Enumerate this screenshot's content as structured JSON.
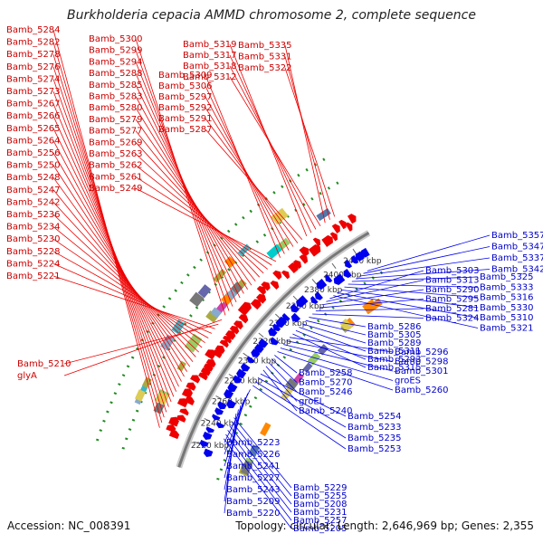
{
  "title": "Burkholderia cepacia AMMD chromosome 2, complete sequence",
  "footer": {
    "accession": "Accession: NC_008391",
    "summary": "Topology: circular; Length: 2,646,969 bp; Genes: 2,355"
  },
  "colors": {
    "forward_gene": "#ee0000",
    "reverse_gene": "#0000ee",
    "forward_label": "#cc0000",
    "reverse_label": "#0000cc",
    "backbone": "#777777",
    "dots": "#228b22"
  },
  "scale_ticks": [
    "2220 kbp",
    "2240 kbp",
    "2260 kbp",
    "2280 kbp",
    "2300 kbp",
    "2320 kbp",
    "2340 kbp",
    "2360 kbp",
    "2380 kbp",
    "2400 kbp",
    "2420 kbp"
  ],
  "forward_labels": [
    "Bamb_5284",
    "Bamb_5282",
    "Bamb_5278",
    "Bamb_5276",
    "Bamb_5274",
    "Bamb_5273",
    "Bamb_5267",
    "Bamb_5266",
    "Bamb_5265",
    "Bamb_5264",
    "Bamb_5256",
    "Bamb_5250",
    "Bamb_5248",
    "Bamb_5247",
    "Bamb_5242",
    "Bamb_5236",
    "Bamb_5234",
    "Bamb_5230",
    "Bamb_5228",
    "Bamb_5224",
    "Bamb_5221",
    "Bamb_5210",
    "glyA",
    "Bamb_5300",
    "Bamb_5299",
    "Bamb_5294",
    "Bamb_5288",
    "Bamb_5285",
    "Bamb_5283",
    "Bamb_5280",
    "Bamb_5279",
    "Bamb_5277",
    "Bamb_5269",
    "Bamb_5263",
    "Bamb_5262",
    "Bamb_5261",
    "Bamb_5249",
    "Bamb_5309",
    "Bamb_5306",
    "Bamb_5297",
    "Bamb_5292",
    "Bamb_5291",
    "Bamb_5287",
    "Bamb_5319",
    "Bamb_5317",
    "Bamb_5318",
    "Bamb_5312",
    "Bamb_5335",
    "Bamb_5331",
    "Bamb_5322"
  ],
  "reverse_labels": [
    "Bamb_5357",
    "Bamb_5347",
    "Bamb_5337",
    "Bamb_5342",
    "Bamb_5325",
    "Bamb_5333",
    "Bamb_5316",
    "Bamb_5330",
    "Bamb_5310",
    "Bamb_5321",
    "Bamb_5303",
    "Bamb_5313",
    "Bamb_5290",
    "Bamb_5295",
    "Bamb_5281",
    "Bamb_5324",
    "Bamb_5286",
    "Bamb_5305",
    "Bamb_5289",
    "Bamb_5311",
    "Bamb_5293",
    "Bamb_5315",
    "Bamb_5296",
    "Bamb_5298",
    "Bamb_5301",
    "groES",
    "Bamb_5260",
    "Bamb_5258",
    "Bamb_5270",
    "Bamb_5246",
    "groEL",
    "Bamb_5240",
    "Bamb_5254",
    "Bamb_5233",
    "Bamb_5235",
    "Bamb_5253",
    "Bamb_5223",
    "Bamb_5226",
    "Bamb_5241",
    "Bamb_5227",
    "Bamb_5243",
    "Bamb_5209",
    "Bamb_5220",
    "Bamb_5229",
    "Bamb_5255",
    "Bamb_5208",
    "Bamb_5231",
    "Bamb_5257",
    "Bamb_5205",
    "Bamb_5197",
    "Bamb_5206"
  ]
}
